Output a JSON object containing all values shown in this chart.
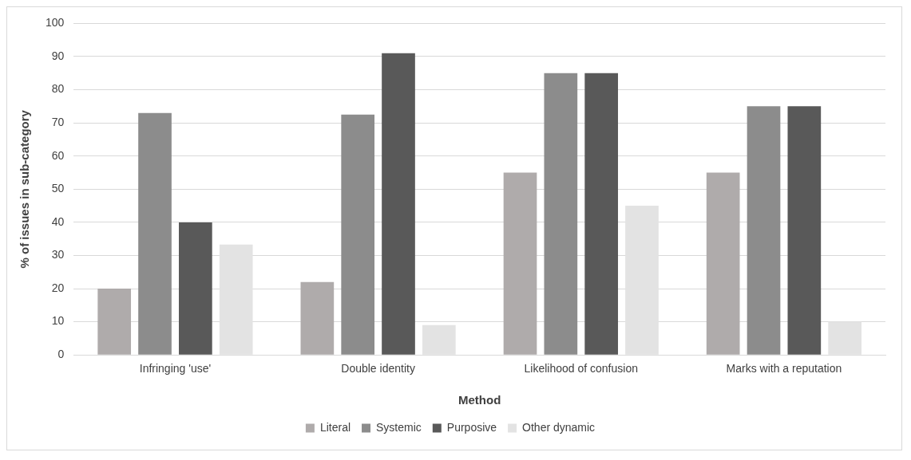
{
  "chart_data": {
    "type": "bar",
    "xlabel": "Method",
    "ylabel": "% of issues in sub-category",
    "categories": [
      "Infringing 'use'",
      "Double identity",
      "Likelihood of confusion",
      "Marks with a reputation"
    ],
    "series": [
      {
        "name": "Literal",
        "color": "#afabab",
        "values": [
          20,
          22,
          55,
          55
        ]
      },
      {
        "name": "Systemic",
        "color": "#8c8c8c",
        "values": [
          73,
          72.5,
          85,
          75
        ]
      },
      {
        "name": "Purposive",
        "color": "#595959",
        "values": [
          40,
          91,
          85,
          75
        ]
      },
      {
        "name": "Other dynamic",
        "color": "#e3e3e3",
        "values": [
          33.3,
          9,
          45,
          10
        ]
      }
    ],
    "ylim": [
      0,
      100
    ],
    "yticks": [
      0,
      10,
      20,
      30,
      40,
      50,
      60,
      70,
      80,
      90,
      100
    ],
    "grid": "y",
    "legend": "bottom"
  }
}
